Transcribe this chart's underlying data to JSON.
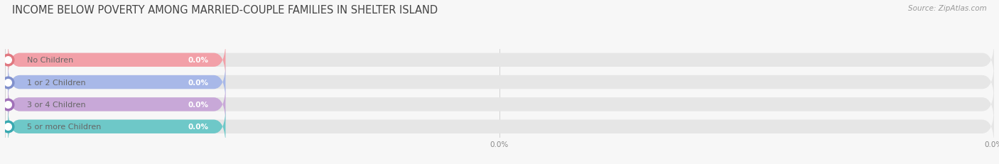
{
  "title": "INCOME BELOW POVERTY AMONG MARRIED-COUPLE FAMILIES IN SHELTER ISLAND",
  "source": "Source: ZipAtlas.com",
  "categories": [
    "No Children",
    "1 or 2 Children",
    "3 or 4 Children",
    "5 or more Children"
  ],
  "values": [
    0.0,
    0.0,
    0.0,
    0.0
  ],
  "bar_colors": [
    "#f2a0a8",
    "#a8b8e8",
    "#c8a8d8",
    "#6ec8c8"
  ],
  "dot_colors": [
    "#e07880",
    "#8090cc",
    "#a070b8",
    "#38a8b0"
  ],
  "background_color": "#f7f7f7",
  "bar_bg_color": "#e6e6e6",
  "label_color": "#666666",
  "value_color": "#ffffff",
  "title_color": "#444444",
  "source_color": "#999999",
  "xlim_max": 100,
  "colored_bar_width": 22,
  "bar_height": 0.62,
  "title_fontsize": 10.5,
  "label_fontsize": 8.0,
  "value_fontsize": 7.5,
  "source_fontsize": 7.5,
  "tick_fontsize": 7.5,
  "tick_color": "#888888"
}
